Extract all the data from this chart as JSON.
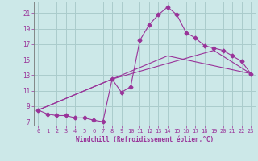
{
  "bg_color": "#cce8e8",
  "grid_color": "#aacccc",
  "line_color": "#993399",
  "xlabel": "Windchill (Refroidissement éolien,°C)",
  "xlim": [
    -0.5,
    23.5
  ],
  "ylim": [
    6.5,
    22.5
  ],
  "xticks": [
    0,
    1,
    2,
    3,
    4,
    5,
    6,
    7,
    8,
    9,
    10,
    11,
    12,
    13,
    14,
    15,
    16,
    17,
    18,
    19,
    20,
    21,
    22,
    23
  ],
  "yticks": [
    7,
    9,
    11,
    13,
    15,
    17,
    19,
    21
  ],
  "series1_x": [
    0,
    1,
    2,
    3,
    4,
    5,
    6,
    7,
    8,
    9,
    10,
    11,
    12,
    13,
    14,
    15,
    16,
    17,
    18,
    19,
    20,
    21,
    22,
    23
  ],
  "series1_y": [
    8.5,
    8.0,
    7.8,
    7.8,
    7.5,
    7.5,
    7.2,
    7.0,
    12.5,
    10.8,
    11.5,
    17.5,
    19.5,
    20.8,
    21.8,
    20.8,
    18.5,
    17.8,
    16.8,
    16.5,
    16.2,
    15.5,
    14.8,
    13.2
  ],
  "series2_x": [
    0,
    8,
    14,
    23
  ],
  "series2_y": [
    8.5,
    12.5,
    15.5,
    13.2
  ],
  "series3_x": [
    0,
    8,
    19,
    23
  ],
  "series3_y": [
    8.5,
    12.5,
    16.2,
    13.2
  ]
}
